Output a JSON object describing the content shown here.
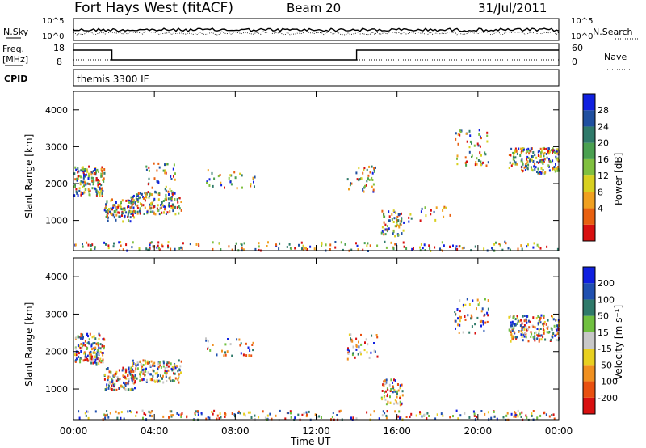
{
  "header": {
    "title": "Fort Hays West (fitACF)",
    "beam": "Beam 20",
    "date": "31/Jul/2011"
  },
  "top_panels": {
    "nsky_label": "N.Sky",
    "nsky_ticks": [
      "10^5",
      "10^0"
    ],
    "nsearch_label": "N.Search",
    "nsearch_ticks": [
      "10^5",
      "10^0"
    ],
    "freq_label": "Freq.",
    "freq_unit": "[MHz]",
    "freq_ticks": [
      "18",
      "8"
    ],
    "nave_label": "Nave",
    "nave_ticks": [
      "60",
      "0"
    ],
    "cpid_label": "CPID",
    "cpid_value": "themis 3300 IF"
  },
  "chart_data": [
    {
      "type": "heatmap",
      "name": "power",
      "ylabel": "Slant Range [km]",
      "xlabel": "",
      "x_ticks": [
        "00:00",
        "04:00",
        "08:00",
        "12:00",
        "16:00",
        "20:00",
        "00:00"
      ],
      "y_ticks": [
        1000,
        2000,
        3000,
        4000
      ],
      "xlim_hours": [
        0,
        24
      ],
      "ylim_km": [
        180,
        4500
      ],
      "colorbar": {
        "label": "Power [dB]",
        "ticks": [
          "4",
          "8",
          "12",
          "16",
          "20",
          "24",
          "28"
        ],
        "colors": [
          "#1020e0",
          "#2050a0",
          "#2f7a6a",
          "#4aa050",
          "#80c040",
          "#d8d020",
          "#f0a020",
          "#e86010",
          "#d81010"
        ]
      },
      "scatter_regions_hours_km": [
        [
          0.0,
          1.5,
          1700,
          2500,
          0.9
        ],
        [
          1.5,
          3.0,
          1000,
          1600,
          0.9
        ],
        [
          2.8,
          5.3,
          1200,
          1800,
          0.8
        ],
        [
          3.5,
          5.0,
          1800,
          2600,
          0.25
        ],
        [
          6.5,
          9.0,
          1900,
          2400,
          0.2
        ],
        [
          13.5,
          15.0,
          1800,
          2500,
          0.3
        ],
        [
          15.2,
          16.3,
          600,
          1300,
          0.6
        ],
        [
          16.0,
          19.0,
          1000,
          1400,
          0.15
        ],
        [
          18.8,
          20.5,
          2500,
          3500,
          0.25
        ],
        [
          21.5,
          24.0,
          2300,
          3000,
          0.8
        ],
        [
          0.0,
          24.0,
          200,
          450,
          0.25
        ]
      ]
    },
    {
      "type": "heatmap",
      "name": "velocity",
      "ylabel": "Slant Range [km]",
      "xlabel": "Time UT",
      "x_ticks": [
        "00:00",
        "04:00",
        "08:00",
        "12:00",
        "16:00",
        "20:00",
        "00:00"
      ],
      "y_ticks": [
        1000,
        2000,
        3000,
        4000
      ],
      "xlim_hours": [
        0,
        24
      ],
      "ylim_km": [
        180,
        4500
      ],
      "colorbar": {
        "label": "Velocity [m s⁻¹]",
        "ticks": [
          "200",
          "100",
          "50",
          "15",
          "-15",
          "-50",
          "-100",
          "-200"
        ],
        "colors": [
          "#1020e0",
          "#2050b0",
          "#2f7a6a",
          "#70c040",
          "#c8c8c8",
          "#e8d020",
          "#f09020",
          "#e85010",
          "#d81010"
        ]
      },
      "scatter_regions_hours_km": [
        [
          0.0,
          1.5,
          1700,
          2500,
          0.9
        ],
        [
          1.5,
          3.0,
          1000,
          1600,
          0.9
        ],
        [
          2.8,
          5.3,
          1200,
          1800,
          0.8
        ],
        [
          6.5,
          9.0,
          1900,
          2400,
          0.2
        ],
        [
          13.5,
          15.0,
          1800,
          2500,
          0.3
        ],
        [
          15.2,
          16.3,
          600,
          1300,
          0.6
        ],
        [
          18.8,
          20.5,
          2500,
          3500,
          0.25
        ],
        [
          21.5,
          24.0,
          2300,
          3000,
          0.8
        ],
        [
          0.0,
          24.0,
          200,
          450,
          0.3
        ]
      ]
    }
  ]
}
